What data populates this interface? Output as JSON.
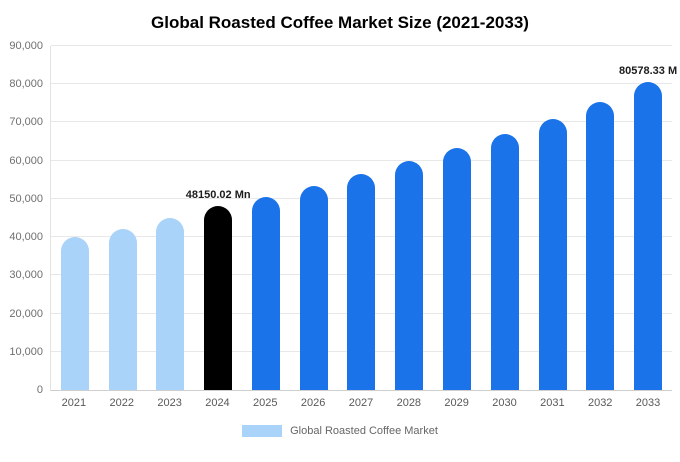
{
  "chart_data": {
    "type": "bar",
    "title": "Global Roasted Coffee Market Size (2021-2033)",
    "categories": [
      "2021",
      "2022",
      "2023",
      "2024",
      "2025",
      "2026",
      "2027",
      "2028",
      "2029",
      "2030",
      "2031",
      "2032",
      "2033"
    ],
    "values": [
      40000,
      42200,
      45000,
      48150.02,
      50500,
      53400,
      56500,
      59800,
      63400,
      67100,
      71000,
      75300,
      80578.33
    ],
    "bar_colors": [
      "#a9d3f8",
      "#a9d3f8",
      "#a9d3f8",
      "#000000",
      "#1a73e8",
      "#1a73e8",
      "#1a73e8",
      "#1a73e8",
      "#1a73e8",
      "#1a73e8",
      "#1a73e8",
      "#1a73e8",
      "#1a73e8"
    ],
    "colors": {
      "historical": "#a9d3f8",
      "highlight": "#000000",
      "forecast": "#1a73e8"
    },
    "xlabel": "",
    "ylabel": "",
    "ylim": [
      0,
      90000
    ],
    "ytick_step": 10000,
    "grid": "horizontal",
    "annotations": [
      {
        "index": 3,
        "text": "48150.02 Mn"
      },
      {
        "index": 12,
        "text": "80578.33 M"
      }
    ],
    "legend": {
      "position": "bottom",
      "label": "Global Roasted Coffee Market",
      "swatch_color": "#a9d3f8"
    }
  }
}
